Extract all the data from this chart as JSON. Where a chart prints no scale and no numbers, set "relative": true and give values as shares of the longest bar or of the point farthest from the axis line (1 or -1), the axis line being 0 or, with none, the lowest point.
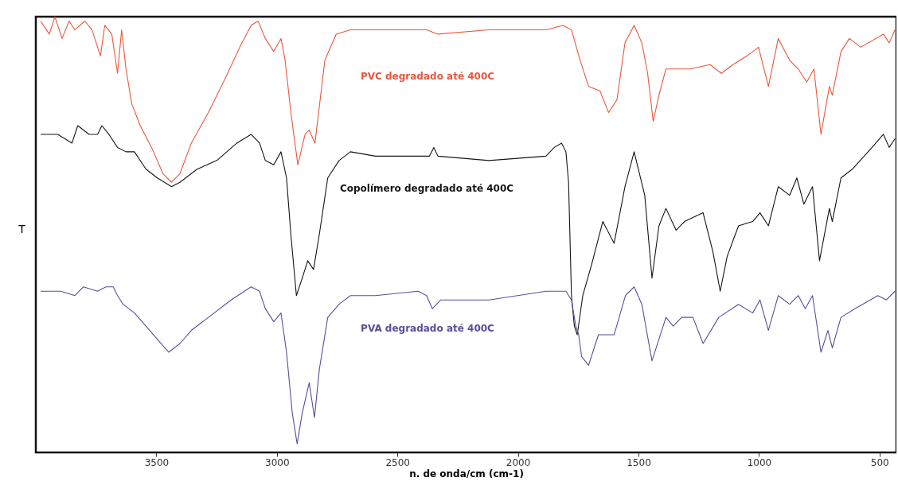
{
  "chart_data": {
    "type": "line",
    "relative": true,
    "xlabel": "n. de onda/cm (cm-1)",
    "ylabel": "T",
    "xlim": [
      4000,
      430
    ],
    "xticks": [
      3500,
      3000,
      2500,
      2000,
      1500,
      1000,
      500
    ],
    "grid": false,
    "legend": false,
    "line_style": "solid",
    "series": [
      {
        "name": "PVC degradado até 400C",
        "color": "#e8583c",
        "x": [
          3980,
          3944,
          3921,
          3891,
          3862,
          3838,
          3797,
          3767,
          3732,
          3714,
          3685,
          3661,
          3644,
          3626,
          3602,
          3567,
          3520,
          3473,
          3437,
          3402,
          3355,
          3284,
          3213,
          3154,
          3107,
          3078,
          3048,
          3013,
          2983,
          2966,
          2942,
          2913,
          2883,
          2866,
          2842,
          2801,
          2754,
          2695,
          2591,
          2379,
          2332,
          2120,
          1884,
          1813,
          1778,
          1742,
          1707,
          1660,
          1624,
          1589,
          1556,
          1518,
          1486,
          1462,
          1439,
          1415,
          1386,
          1285,
          1203,
          1156,
          1108,
          1050,
          1002,
          961,
          920,
          873,
          837,
          802,
          772,
          743,
          708,
          696,
          660,
          625,
          578,
          484,
          460,
          436
        ],
        "values": [
          0.99,
          0.96,
          1.0,
          0.95,
          0.99,
          0.97,
          0.99,
          0.97,
          0.91,
          0.98,
          0.96,
          0.87,
          0.97,
          0.88,
          0.8,
          0.75,
          0.7,
          0.64,
          0.62,
          0.64,
          0.71,
          0.78,
          0.86,
          0.93,
          0.98,
          0.99,
          0.95,
          0.92,
          0.95,
          0.9,
          0.78,
          0.66,
          0.73,
          0.74,
          0.71,
          0.9,
          0.96,
          0.97,
          0.97,
          0.97,
          0.96,
          0.97,
          0.97,
          0.98,
          0.97,
          0.9,
          0.84,
          0.83,
          0.78,
          0.81,
          0.94,
          0.98,
          0.94,
          0.87,
          0.76,
          0.82,
          0.88,
          0.88,
          0.89,
          0.87,
          0.89,
          0.91,
          0.93,
          0.84,
          0.95,
          0.9,
          0.88,
          0.85,
          0.88,
          0.73,
          0.84,
          0.82,
          0.92,
          0.95,
          0.93,
          0.96,
          0.94,
          0.97
        ]
      },
      {
        "name": "Copolímero degradado até 400C",
        "color": "#151515",
        "x": [
          3980,
          3909,
          3850,
          3826,
          3779,
          3744,
          3726,
          3697,
          3661,
          3626,
          3591,
          3543,
          3496,
          3437,
          3402,
          3331,
          3249,
          3166,
          3107,
          3072,
          3048,
          3013,
          2983,
          2960,
          2942,
          2919,
          2895,
          2872,
          2848,
          2824,
          2789,
          2742,
          2695,
          2591,
          2367,
          2349,
          2332,
          2120,
          1884,
          1849,
          1819,
          1801,
          1790,
          1778,
          1766,
          1754,
          1731,
          1695,
          1648,
          1601,
          1556,
          1518,
          1474,
          1444,
          1415,
          1386,
          1344,
          1309,
          1232,
          1191,
          1161,
          1132,
          1085,
          1026,
          996,
          961,
          920,
          873,
          843,
          814,
          778,
          749,
          708,
          696,
          660,
          613,
          531,
          484,
          460,
          436
        ],
        "values": [
          0.73,
          0.73,
          0.71,
          0.75,
          0.73,
          0.73,
          0.75,
          0.73,
          0.7,
          0.69,
          0.69,
          0.65,
          0.63,
          0.61,
          0.62,
          0.65,
          0.67,
          0.71,
          0.73,
          0.71,
          0.67,
          0.66,
          0.69,
          0.63,
          0.5,
          0.36,
          0.4,
          0.44,
          0.42,
          0.5,
          0.63,
          0.67,
          0.69,
          0.68,
          0.68,
          0.7,
          0.68,
          0.67,
          0.68,
          0.7,
          0.71,
          0.69,
          0.62,
          0.36,
          0.29,
          0.27,
          0.36,
          0.43,
          0.53,
          0.48,
          0.61,
          0.69,
          0.59,
          0.4,
          0.52,
          0.56,
          0.51,
          0.53,
          0.55,
          0.46,
          0.37,
          0.45,
          0.52,
          0.53,
          0.55,
          0.52,
          0.61,
          0.59,
          0.63,
          0.57,
          0.61,
          0.44,
          0.56,
          0.53,
          0.63,
          0.65,
          0.7,
          0.73,
          0.7,
          0.72
        ]
      },
      {
        "name": "PVA degradado até 400C",
        "color": "#5b4c9c",
        "x": [
          3980,
          3897,
          3838,
          3803,
          3744,
          3709,
          3679,
          3661,
          3638,
          3591,
          3543,
          3496,
          3449,
          3402,
          3355,
          3284,
          3190,
          3107,
          3072,
          3048,
          3013,
          2983,
          2960,
          2936,
          2916,
          2895,
          2866,
          2844,
          2824,
          2789,
          2742,
          2695,
          2591,
          2414,
          2379,
          2355,
          2320,
          2120,
          1884,
          1801,
          1778,
          1760,
          1748,
          1736,
          1707,
          1666,
          1601,
          1554,
          1518,
          1486,
          1444,
          1386,
          1356,
          1321,
          1274,
          1232,
          1167,
          1085,
          1026,
          996,
          961,
          920,
          873,
          837,
          808,
          778,
          743,
          714,
          696,
          660,
          602,
          507,
          472,
          436
        ],
        "values": [
          0.37,
          0.37,
          0.36,
          0.38,
          0.37,
          0.38,
          0.38,
          0.36,
          0.34,
          0.32,
          0.29,
          0.26,
          0.23,
          0.25,
          0.28,
          0.31,
          0.35,
          0.38,
          0.37,
          0.33,
          0.3,
          0.32,
          0.23,
          0.09,
          0.02,
          0.09,
          0.16,
          0.08,
          0.19,
          0.31,
          0.34,
          0.36,
          0.36,
          0.37,
          0.36,
          0.33,
          0.35,
          0.35,
          0.37,
          0.37,
          0.35,
          0.29,
          0.27,
          0.22,
          0.2,
          0.27,
          0.27,
          0.36,
          0.38,
          0.34,
          0.21,
          0.31,
          0.29,
          0.31,
          0.31,
          0.25,
          0.31,
          0.34,
          0.32,
          0.35,
          0.28,
          0.36,
          0.34,
          0.36,
          0.33,
          0.36,
          0.23,
          0.28,
          0.24,
          0.31,
          0.33,
          0.36,
          0.35,
          0.37
        ]
      }
    ]
  }
}
